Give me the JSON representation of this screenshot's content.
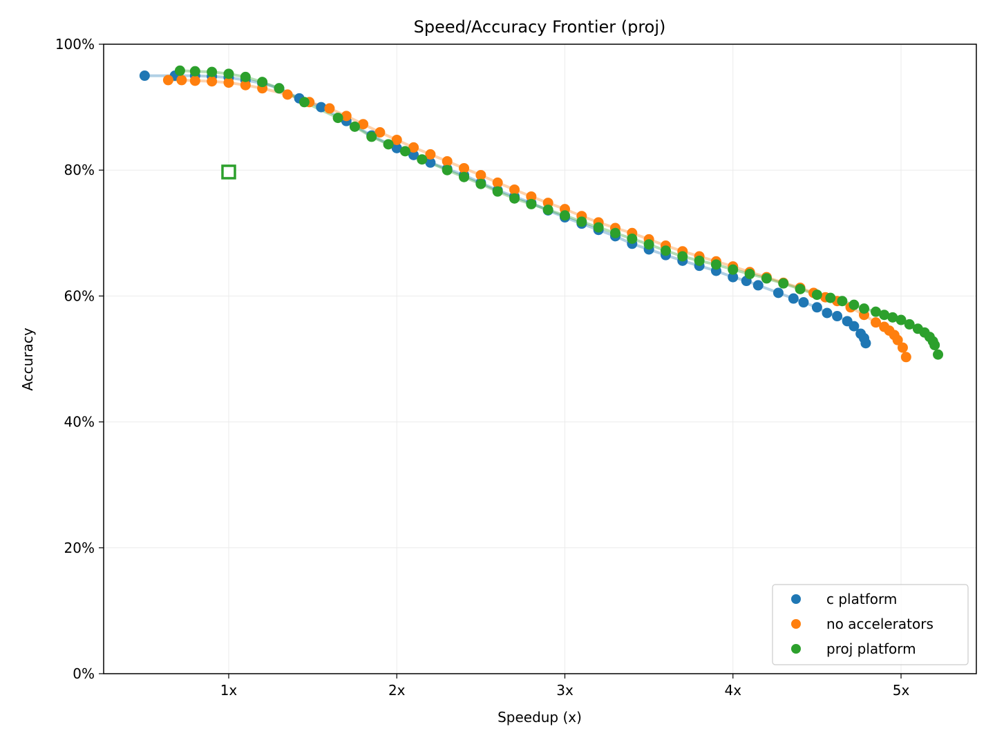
{
  "chart_data": {
    "type": "scatter",
    "title": "Speed/Accuracy Frontier (proj)",
    "xlabel": "Speedup (x)",
    "ylabel": "Accuracy",
    "xlim": [
      0.256,
      5.448
    ],
    "ylim": [
      0,
      100
    ],
    "xticks": [
      1,
      2,
      3,
      4,
      5
    ],
    "xtick_labels": [
      "1x",
      "2x",
      "3x",
      "4x",
      "5x"
    ],
    "yticks": [
      0,
      20,
      40,
      60,
      80,
      100
    ],
    "ytick_labels": [
      "0%",
      "20%",
      "40%",
      "60%",
      "80%",
      "100%"
    ],
    "grid": true,
    "legend_placement": "lower-right",
    "series": [
      {
        "name": "c platform",
        "color": "#1f77b4",
        "points": [
          [
            0.5,
            95.0
          ],
          [
            0.68,
            95.0
          ],
          [
            0.8,
            95.0
          ],
          [
            0.9,
            94.9
          ],
          [
            1.0,
            94.7
          ],
          [
            1.1,
            94.3
          ],
          [
            1.2,
            93.8
          ],
          [
            1.3,
            93.0
          ],
          [
            1.42,
            91.4
          ],
          [
            1.55,
            90.0
          ],
          [
            1.7,
            87.8
          ],
          [
            1.85,
            85.5
          ],
          [
            2.0,
            83.5
          ],
          [
            2.1,
            82.4
          ],
          [
            2.2,
            81.2
          ],
          [
            2.3,
            80.2
          ],
          [
            2.4,
            79.2
          ],
          [
            2.5,
            78.0
          ],
          [
            2.6,
            76.8
          ],
          [
            2.7,
            75.8
          ],
          [
            2.8,
            74.8
          ],
          [
            2.9,
            73.6
          ],
          [
            3.0,
            72.5
          ],
          [
            3.1,
            71.5
          ],
          [
            3.2,
            70.5
          ],
          [
            3.3,
            69.5
          ],
          [
            3.4,
            68.3
          ],
          [
            3.5,
            67.4
          ],
          [
            3.6,
            66.5
          ],
          [
            3.7,
            65.6
          ],
          [
            3.8,
            64.8
          ],
          [
            3.9,
            64.0
          ],
          [
            4.0,
            63.0
          ],
          [
            4.08,
            62.4
          ],
          [
            4.15,
            61.7
          ],
          [
            4.27,
            60.5
          ],
          [
            4.36,
            59.6
          ],
          [
            4.42,
            59.0
          ],
          [
            4.5,
            58.2
          ],
          [
            4.56,
            57.3
          ],
          [
            4.62,
            56.8
          ],
          [
            4.68,
            56.0
          ],
          [
            4.72,
            55.2
          ],
          [
            4.76,
            54.0
          ],
          [
            4.78,
            53.3
          ],
          [
            4.79,
            52.5
          ]
        ]
      },
      {
        "name": "no accelerators",
        "color": "#ff7f0e",
        "points": [
          [
            0.64,
            94.3
          ],
          [
            0.72,
            94.3
          ],
          [
            0.8,
            94.2
          ],
          [
            0.9,
            94.1
          ],
          [
            1.0,
            93.9
          ],
          [
            1.1,
            93.5
          ],
          [
            1.2,
            93.0
          ],
          [
            1.35,
            92.0
          ],
          [
            1.48,
            90.8
          ],
          [
            1.6,
            89.8
          ],
          [
            1.7,
            88.6
          ],
          [
            1.8,
            87.3
          ],
          [
            1.9,
            86.0
          ],
          [
            2.0,
            84.8
          ],
          [
            2.1,
            83.6
          ],
          [
            2.2,
            82.5
          ],
          [
            2.3,
            81.4
          ],
          [
            2.4,
            80.3
          ],
          [
            2.5,
            79.2
          ],
          [
            2.6,
            78.0
          ],
          [
            2.7,
            76.9
          ],
          [
            2.8,
            75.8
          ],
          [
            2.9,
            74.8
          ],
          [
            3.0,
            73.8
          ],
          [
            3.1,
            72.7
          ],
          [
            3.2,
            71.7
          ],
          [
            3.3,
            70.8
          ],
          [
            3.4,
            70.0
          ],
          [
            3.5,
            69.0
          ],
          [
            3.6,
            68.0
          ],
          [
            3.7,
            67.1
          ],
          [
            3.8,
            66.3
          ],
          [
            3.9,
            65.5
          ],
          [
            4.0,
            64.7
          ],
          [
            4.1,
            63.8
          ],
          [
            4.2,
            63.0
          ],
          [
            4.3,
            62.1
          ],
          [
            4.4,
            61.3
          ],
          [
            4.48,
            60.5
          ],
          [
            4.55,
            59.8
          ],
          [
            4.62,
            59.2
          ],
          [
            4.7,
            58.2
          ],
          [
            4.78,
            57.0
          ],
          [
            4.85,
            55.8
          ],
          [
            4.9,
            55.1
          ],
          [
            4.93,
            54.5
          ],
          [
            4.96,
            53.8
          ],
          [
            4.98,
            53.0
          ],
          [
            5.01,
            51.8
          ],
          [
            5.03,
            50.3
          ]
        ]
      },
      {
        "name": "proj platform",
        "color": "#2ca02c",
        "points": [
          [
            0.71,
            95.8
          ],
          [
            0.8,
            95.7
          ],
          [
            0.9,
            95.6
          ],
          [
            1.0,
            95.3
          ],
          [
            1.1,
            94.8
          ],
          [
            1.2,
            94.0
          ],
          [
            1.3,
            93.0
          ],
          [
            1.45,
            90.8
          ],
          [
            1.65,
            88.3
          ],
          [
            1.75,
            86.9
          ],
          [
            1.85,
            85.3
          ],
          [
            1.95,
            84.1
          ],
          [
            2.05,
            83.0
          ],
          [
            2.15,
            81.7
          ],
          [
            2.3,
            80.0
          ],
          [
            2.4,
            78.9
          ],
          [
            2.5,
            77.8
          ],
          [
            2.6,
            76.6
          ],
          [
            2.7,
            75.5
          ],
          [
            2.8,
            74.6
          ],
          [
            2.9,
            73.7
          ],
          [
            3.0,
            72.8
          ],
          [
            3.1,
            71.8
          ],
          [
            3.2,
            70.9
          ],
          [
            3.3,
            70.0
          ],
          [
            3.4,
            69.1
          ],
          [
            3.5,
            68.2
          ],
          [
            3.6,
            67.2
          ],
          [
            3.7,
            66.3
          ],
          [
            3.8,
            65.6
          ],
          [
            3.9,
            65.0
          ],
          [
            4.0,
            64.2
          ],
          [
            4.1,
            63.5
          ],
          [
            4.2,
            62.8
          ],
          [
            4.3,
            62.0
          ],
          [
            4.4,
            61.1
          ],
          [
            4.5,
            60.2
          ],
          [
            4.58,
            59.7
          ],
          [
            4.65,
            59.2
          ],
          [
            4.72,
            58.6
          ],
          [
            4.78,
            58.0
          ],
          [
            4.85,
            57.5
          ],
          [
            4.9,
            57.0
          ],
          [
            4.95,
            56.6
          ],
          [
            5.0,
            56.2
          ],
          [
            5.05,
            55.5
          ],
          [
            5.1,
            54.8
          ],
          [
            5.14,
            54.2
          ],
          [
            5.17,
            53.5
          ],
          [
            5.19,
            52.8
          ],
          [
            5.2,
            52.2
          ],
          [
            5.22,
            50.7
          ]
        ]
      }
    ],
    "reference_marker": {
      "shape": "hollow-square",
      "color": "#2ca02c",
      "x": 1.0,
      "y": 79.7
    }
  }
}
